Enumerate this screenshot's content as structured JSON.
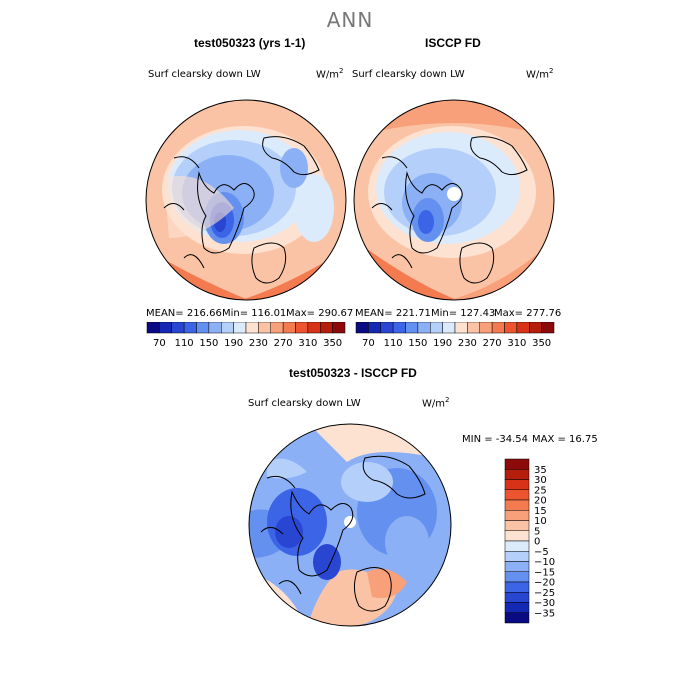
{
  "title": "ANN",
  "panels": [
    {
      "title": "test050323 (yrs 1-1)",
      "variable": "Surf clearsky down LW",
      "units_base": "W/m",
      "units_exp": "2",
      "mean_text": "MEAN= 216.66",
      "min_text": "Min= 116.01",
      "max_text": "Max= 290.67"
    },
    {
      "title": "ISCCP FD",
      "variable": "Surf clearsky down LW",
      "units_base": "W/m",
      "units_exp": "2",
      "mean_text": "MEAN= 221.71",
      "min_text": "Min= 127.43",
      "max_text": "Max= 277.76"
    }
  ],
  "colorbar_top": {
    "tick_labels": [
      "70",
      "110",
      "150",
      "190",
      "230",
      "270",
      "310",
      "350"
    ],
    "colors": [
      "#0a0a82",
      "#1428b4",
      "#2846d2",
      "#3c64e6",
      "#6490f0",
      "#8cb0f5",
      "#b4d0fa",
      "#dcebfc",
      "#fde2d2",
      "#fbc3a5",
      "#f8a07a",
      "#f47a50",
      "#ec5530",
      "#d83218",
      "#b41e0a",
      "#8c0a0a"
    ]
  },
  "diff_panel": {
    "title": "test050323 - ISCCP FD",
    "variable": "Surf clearsky down LW",
    "units_base": "W/m",
    "units_exp": "2",
    "min_text": "MIN = -34.54",
    "max_text": "MAX =  16.75",
    "colorbar": {
      "labels": [
        "35",
        "30",
        "25",
        "20",
        "15",
        "10",
        "5",
        "0",
        "−5",
        "−10",
        "−15",
        "−20",
        "−25",
        "−30",
        "−35"
      ],
      "colors": [
        "#8c0a0a",
        "#b41e0a",
        "#d83218",
        "#ec5530",
        "#f47a50",
        "#f8a07a",
        "#fbc3a5",
        "#fde2d2",
        "#dcebfc",
        "#b4d0fa",
        "#8cb0f5",
        "#6490f0",
        "#3c64e6",
        "#2846d2",
        "#1428b4",
        "#0a0a82"
      ]
    }
  }
}
